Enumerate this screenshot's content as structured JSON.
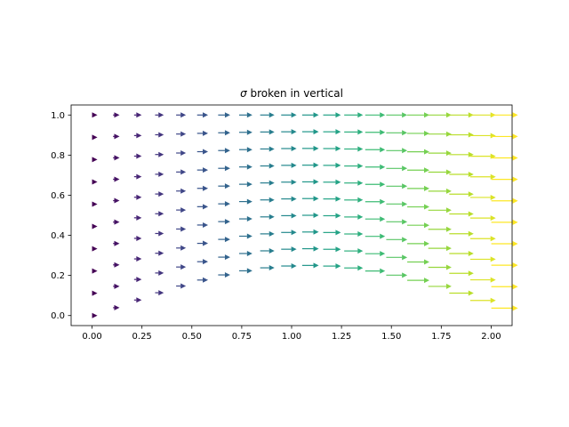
{
  "chart_data": {
    "type": "quiver",
    "title_symbol": "σ",
    "title_rest": " broken in vertical",
    "xlabel": "",
    "ylabel": "",
    "xlim": [
      -0.105,
      2.105
    ],
    "ylim": [
      -0.05,
      1.05
    ],
    "x_ticks": [
      0.0,
      0.25,
      0.5,
      0.75,
      1.0,
      1.25,
      1.5,
      1.75,
      2.0
    ],
    "x_tick_labels": [
      "0.00",
      "0.25",
      "0.50",
      "0.75",
      "1.00",
      "1.25",
      "1.50",
      "1.75",
      "2.00"
    ],
    "y_ticks": [
      0.0,
      0.2,
      0.4,
      0.6,
      0.8,
      1.0
    ],
    "y_tick_labels": [
      "0.0",
      "0.2",
      "0.4",
      "0.6",
      "0.8",
      "1.0"
    ],
    "grid": false,
    "colormap": "viridis",
    "colormap_stops": [
      "#440154",
      "#482878",
      "#3e4989",
      "#31688e",
      "#26828e",
      "#1f9e89",
      "#35b779",
      "#6ece58",
      "#b5de2b",
      "#fde725"
    ],
    "field": {
      "x_start": 0.0,
      "x_step": 0.1053,
      "nx": 20,
      "y_start": 0.0,
      "y_step": 0.1111,
      "ny": 10,
      "curve": "y_display = y*(1 - t) + (1 - y)*t*0.25*sin(pi*x/2.1)",
      "color_by": "x",
      "arrow_length_grows_with_x": true
    }
  }
}
